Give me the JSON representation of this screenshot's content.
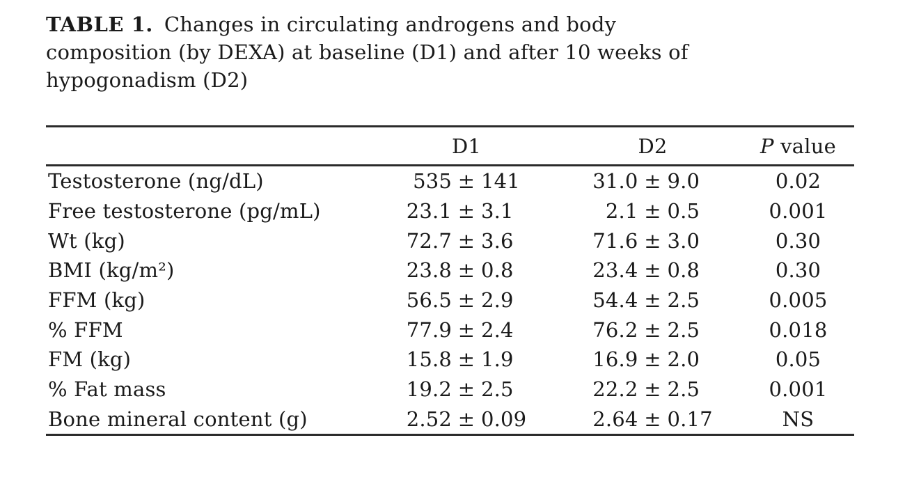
{
  "document": {
    "caption": {
      "label": "TABLE 1.",
      "lines": [
        "Changes in circulating androgens and body",
        "composition (by DEXA) at baseline (D1) and after 10 weeks of",
        "hypogonadism (D2)"
      ]
    },
    "table": {
      "plus_minus": "±",
      "header": {
        "label_col": "",
        "d1": "D1",
        "d2": "D2",
        "p_italic": "P",
        "p_rest": " value"
      },
      "rows": [
        {
          "label": "Testosterone (ng/dL)",
          "d1_mean": "535",
          "d1_sd": "141",
          "d2_mean": "31.0",
          "d2_sd": "9.0",
          "p": "0.02"
        },
        {
          "label": "Free testosterone (pg/mL)",
          "d1_mean": "23.1",
          "d1_sd": "3.1",
          "d2_mean": "2.1",
          "d2_sd": "0.5",
          "p": "0.001"
        },
        {
          "label": "Wt (kg)",
          "d1_mean": "72.7",
          "d1_sd": "3.6",
          "d2_mean": "71.6",
          "d2_sd": "3.0",
          "p": "0.30"
        },
        {
          "label": "BMI (kg/m²)",
          "d1_mean": "23.8",
          "d1_sd": "0.8",
          "d2_mean": "23.4",
          "d2_sd": "0.8",
          "p": "0.30"
        },
        {
          "label": "FFM (kg)",
          "d1_mean": "56.5",
          "d1_sd": "2.9",
          "d2_mean": "54.4",
          "d2_sd": "2.5",
          "p": "0.005"
        },
        {
          "label": "% FFM",
          "d1_mean": "77.9",
          "d1_sd": "2.4",
          "d2_mean": "76.2",
          "d2_sd": "2.5",
          "p": "0.018"
        },
        {
          "label": "FM (kg)",
          "d1_mean": "15.8",
          "d1_sd": "1.9",
          "d2_mean": "16.9",
          "d2_sd": "2.0",
          "p": "0.05"
        },
        {
          "label": "% Fat mass",
          "d1_mean": "19.2",
          "d1_sd": "2.5",
          "d2_mean": "22.2",
          "d2_sd": "2.5",
          "p": "0.001"
        },
        {
          "label": "Bone mineral content (g)",
          "d1_mean": "2.52",
          "d1_sd": "0.09",
          "d2_mean": "2.64",
          "d2_sd": "0.17",
          "p": "NS"
        }
      ]
    }
  }
}
